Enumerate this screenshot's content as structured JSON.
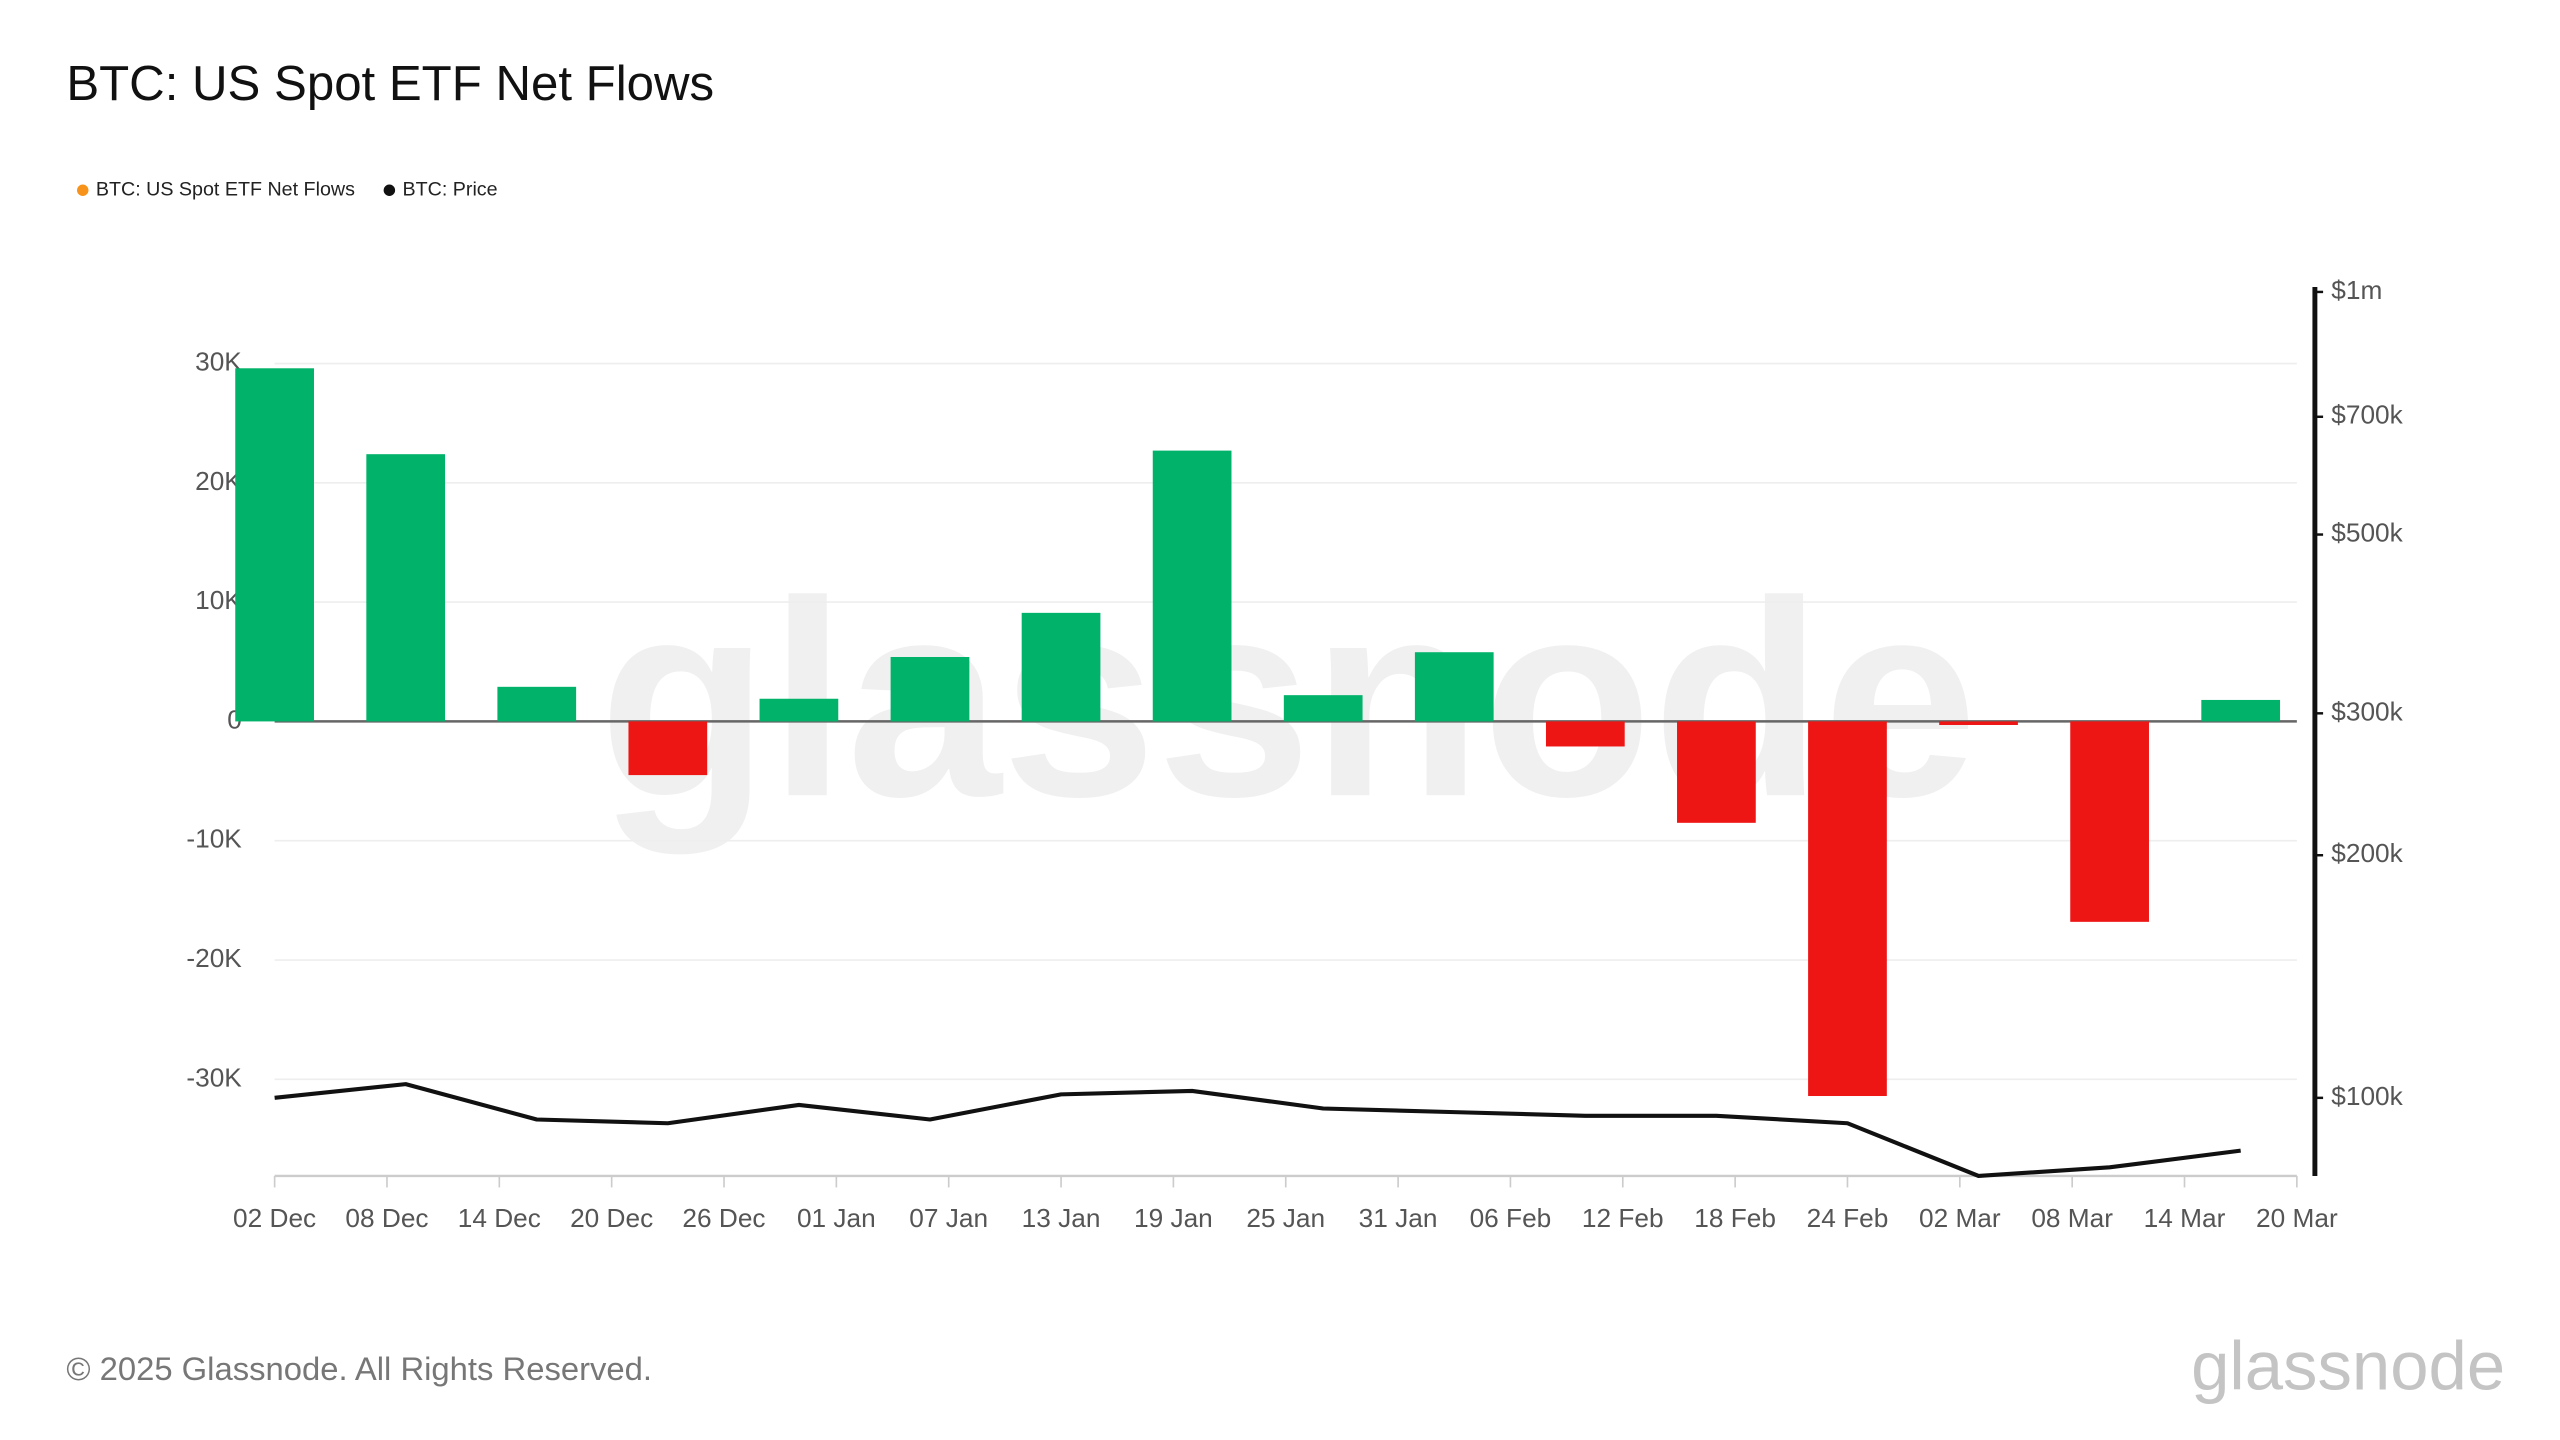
{
  "chart_data": {
    "type": "bar",
    "title": "BTC: US Spot ETF Net Flows",
    "legend": "top-left",
    "grid": true,
    "x": [
      "02 Dec",
      "09 Dec",
      "16 Dec",
      "23 Dec",
      "30 Dec",
      "06 Jan",
      "13 Jan",
      "20 Jan",
      "27 Jan",
      "03 Feb",
      "10 Feb",
      "17 Feb",
      "24 Feb",
      "03 Mar",
      "10 Mar",
      "17 Mar"
    ],
    "xlim": [
      "02 Dec",
      "20 Mar"
    ],
    "xticks": [
      "02 Dec",
      "08 Dec",
      "14 Dec",
      "20 Dec",
      "26 Dec",
      "01 Jan",
      "07 Jan",
      "13 Jan",
      "19 Jan",
      "25 Jan",
      "31 Jan",
      "06 Feb",
      "12 Feb",
      "18 Feb",
      "24 Feb",
      "02 Mar",
      "08 Mar",
      "14 Mar",
      "20 Mar"
    ],
    "ylim": [
      -38100,
      36000
    ],
    "yticks": [
      {
        "value": 30000,
        "label": "30K"
      },
      {
        "value": 20000,
        "label": "20K"
      },
      {
        "value": 10000,
        "label": "10K"
      },
      0,
      {
        "value": -10000,
        "label": "-10K"
      },
      {
        "value": -20000,
        "label": "-20K"
      },
      {
        "value": -30000,
        "label": "-30K"
      }
    ],
    "y2lim": [
      80000,
      1000000
    ],
    "y2scale": "log",
    "y2ticks": [
      {
        "value": 1000000,
        "label": "$1m"
      },
      {
        "value": 700000,
        "label": "$700k"
      },
      {
        "value": 500000,
        "label": "$500k"
      },
      {
        "value": 300000,
        "label": "$300k"
      },
      {
        "value": 200000,
        "label": "$200k"
      },
      {
        "value": 100000,
        "label": "$100k"
      }
    ],
    "series": [
      {
        "name": "BTC: US Spot ETF Net Flows",
        "color": "#f7931a",
        "positive_color": "#00b26a",
        "negative_color": "#ee1515",
        "values": [
          29600,
          22400,
          2900,
          -4500,
          1900,
          5400,
          9100,
          22700,
          2200,
          5800,
          -2100,
          -8500,
          -31400,
          -300,
          -16800,
          1800
        ]
      },
      {
        "name": "BTC: Price",
        "color": "#111111",
        "type": "line",
        "axis": "y2",
        "values": [
          100000,
          104000,
          94000,
          93000,
          98000,
          94000,
          101000,
          102000,
          97000,
          96000,
          95000,
          95000,
          93000,
          80000,
          82000,
          86000
        ]
      }
    ],
    "watermark": "glassnode",
    "footer": "© 2025 Glassnode. All Rights Reserved.",
    "logo": "glassnode"
  }
}
